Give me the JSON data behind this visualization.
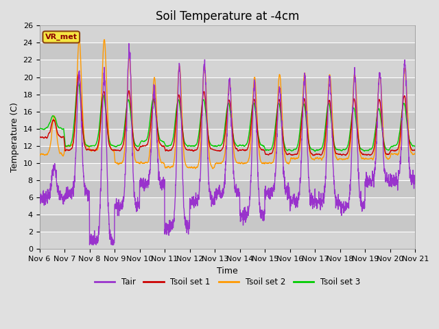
{
  "title": "Soil Temperature at -4cm",
  "xlabel": "Time",
  "ylabel": "Temperature (C)",
  "ylim": [
    0,
    26
  ],
  "xlim": [
    0,
    15
  ],
  "background_color": "#e0e0e0",
  "plot_bg_color": "#d4d4d4",
  "colors": {
    "Tair": "#9933cc",
    "Tsoil set 1": "#cc0000",
    "Tsoil set 2": "#ff9900",
    "Tsoil set 3": "#00cc00"
  },
  "legend_labels": [
    "Tair",
    "Tsoil set 1",
    "Tsoil set 2",
    "Tsoil set 3"
  ],
  "xtick_labels": [
    "Nov 6",
    "Nov 7",
    "Nov 8",
    "Nov 9",
    "Nov 10",
    "Nov 11",
    "Nov 12",
    "Nov 13",
    "Nov 14",
    "Nov 15",
    "Nov 16",
    "Nov 17",
    "Nov 18",
    "Nov 19",
    "Nov 20",
    "Nov 21"
  ],
  "annotation_text": "VR_met",
  "title_fontsize": 12,
  "label_fontsize": 9,
  "tick_fontsize": 8,
  "yticks": [
    0,
    2,
    4,
    6,
    8,
    10,
    12,
    14,
    16,
    18,
    20,
    22,
    24,
    26
  ],
  "band_colors": [
    "#d4d4d4",
    "#c8c8c8"
  ]
}
